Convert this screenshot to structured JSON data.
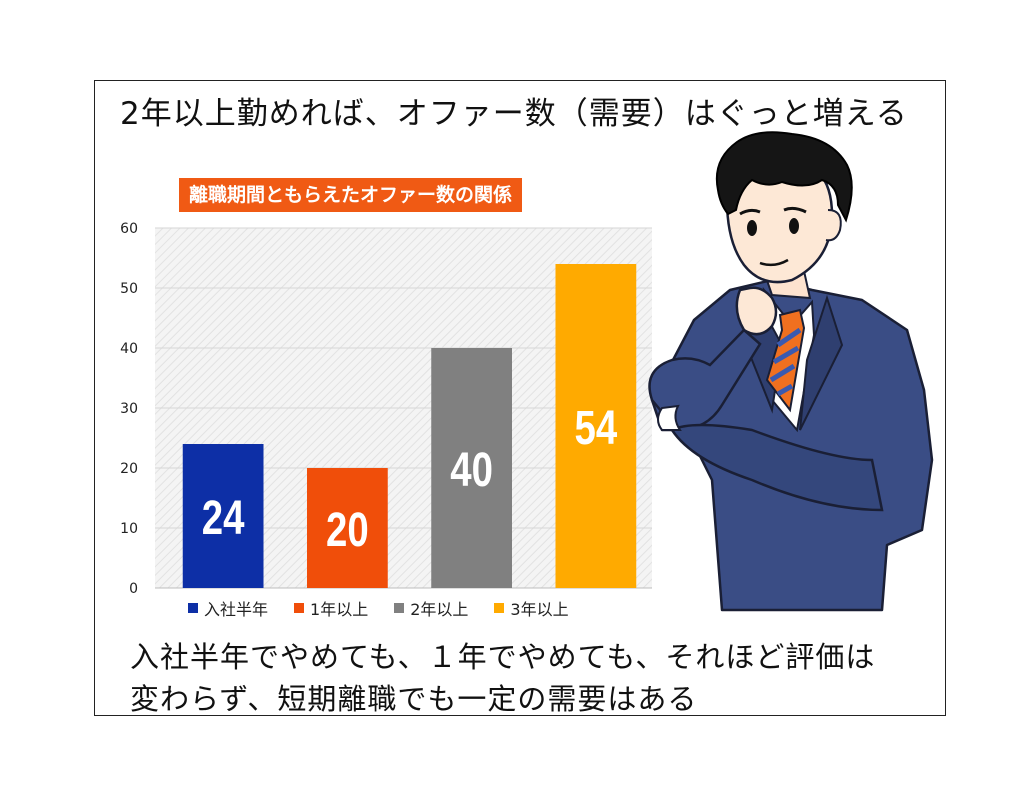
{
  "headline": "2年以上勤めれば、オファー数（需要）はぐっと増える",
  "caption_lines": [
    "入社半年でやめても、１年でやめても、それほど評価は",
    "変わらず、短期離職でも一定の需要はある"
  ],
  "chart_data": {
    "type": "bar",
    "title": "離職期間ともらえたオファー数の関係",
    "categories": [
      "入社半年",
      "1年以上",
      "2年以上",
      "3年以上"
    ],
    "values": [
      24,
      20,
      40,
      54
    ],
    "data_labels": [
      "24",
      "20",
      "40",
      "54"
    ],
    "colors": [
      "#0d2fa6",
      "#f04e0a",
      "#808080",
      "#ffaa00"
    ],
    "ylim": [
      0,
      60
    ],
    "yticks": [
      0,
      10,
      20,
      30,
      40,
      50,
      60
    ],
    "grid": true,
    "legend_position": "bottom"
  },
  "colors": {
    "title_bg": "#f05a14",
    "suit": "#3a4d85",
    "tie_orange": "#f07020",
    "tie_blue": "#3a5ab0"
  },
  "character": {
    "icon": "businessman-thinking-illustration"
  }
}
